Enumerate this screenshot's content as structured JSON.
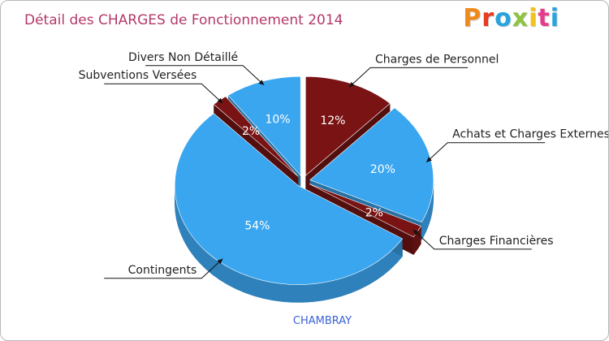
{
  "header": {
    "title": "Détail des CHARGES de Fonctionnement 2014",
    "logo_text": "Proxiti",
    "logo_colors": [
      "#f08a1c",
      "#e83b1f",
      "#27a4dd",
      "#8cc43c",
      "#f3c21b",
      "#e83b8c",
      "#27a4dd"
    ]
  },
  "chart_data": {
    "type": "pie",
    "title": "Détail des CHARGES de Fonctionnement 2014",
    "subtitle": "CHAMBRAY",
    "slices": [
      {
        "label": "Charges de Personnel",
        "value": 12,
        "display": "12%",
        "color": "#7a1414"
      },
      {
        "label": "Achats et Charges Externes",
        "value": 20,
        "display": "20%",
        "color": "#3ba6f0"
      },
      {
        "label": "Charges Financières",
        "value": 2,
        "display": "2%",
        "color": "#7a1414"
      },
      {
        "label": "Contingents",
        "value": 54,
        "display": "54%",
        "color": "#3ba6f0"
      },
      {
        "label": "Subventions Versées",
        "value": 2,
        "display": "2%",
        "color": "#7a1414"
      },
      {
        "label": "Divers Non Détaillé",
        "value": 10,
        "display": "10%",
        "color": "#3ba6f0"
      }
    ]
  }
}
